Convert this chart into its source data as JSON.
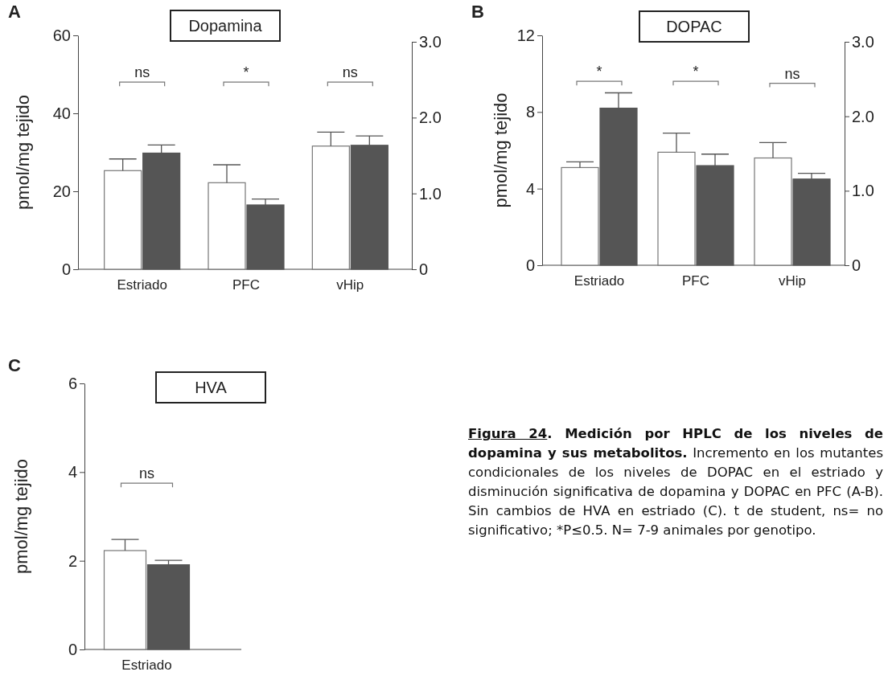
{
  "chart_data": [
    {
      "type": "bar",
      "title": "Dopamina",
      "ylabel": "pmol/mg tejido",
      "categories": [
        "Estriado",
        "PFC",
        "vHip"
      ],
      "ylim": [
        0,
        60
      ],
      "yticks": [
        0,
        20,
        40,
        60
      ],
      "y2lim": [
        0,
        3
      ],
      "y2ticks": [
        {
          "value": 0,
          "label": "0"
        },
        {
          "value": 1,
          "label": "1.0"
        },
        {
          "value": 2,
          "label": "2.0"
        },
        {
          "value": 3,
          "label": "3.0"
        }
      ],
      "grid": false,
      "series": [
        {
          "color": "#ffffff",
          "values": [
            25.3,
            22.2,
            31.6
          ],
          "errors": [
            [
              25.3,
              28.3
            ],
            [
              22.2,
              26.8
            ],
            [
              31.6,
              35.2
            ]
          ]
        },
        {
          "color": "#555555",
          "values": [
            29.8,
            16.5,
            31.8
          ],
          "errors": [
            [
              29.8,
              31.9
            ],
            [
              16.5,
              18.0
            ],
            [
              31.8,
              34.2
            ]
          ]
        }
      ],
      "annotations": [
        "A",
        "ns",
        "*",
        "ns"
      ]
    },
    {
      "type": "bar",
      "title": "DOPAC",
      "ylabel": "pmol/mg tejido",
      "categories": [
        "Estriado",
        "PFC",
        "vHip"
      ],
      "ylim": [
        0,
        12
      ],
      "yticks": [
        0,
        4,
        8,
        12
      ],
      "y2lim": [
        0,
        3
      ],
      "y2ticks": [
        {
          "value": 0,
          "label": "0"
        },
        {
          "value": 1,
          "label": "1.0"
        },
        {
          "value": 2,
          "label": "2.0"
        },
        {
          "value": 3,
          "label": "3.0"
        }
      ],
      "grid": false,
      "series": [
        {
          "color": "#ffffff",
          "values": [
            5.1,
            5.9,
            5.6
          ],
          "errors": [
            [
              5.1,
              5.4
            ],
            [
              5.9,
              6.9
            ],
            [
              5.6,
              6.4
            ]
          ]
        },
        {
          "color": "#555555",
          "values": [
            8.2,
            5.2,
            4.5
          ],
          "errors": [
            [
              8.2,
              9.0
            ],
            [
              5.2,
              5.8
            ],
            [
              4.5,
              4.8
            ]
          ]
        }
      ],
      "annotations": [
        "B",
        "*",
        "*",
        "ns"
      ]
    },
    {
      "type": "bar",
      "title": "HVA",
      "ylabel": "pmol/mg tejido",
      "categories": [
        "Estriado"
      ],
      "ylim": [
        0,
        6
      ],
      "yticks": [
        0,
        2,
        4,
        6
      ],
      "grid": false,
      "series": [
        {
          "color": "#ffffff",
          "values": [
            2.23
          ],
          "errors": [
            [
              2.23,
              2.48
            ]
          ]
        },
        {
          "color": "#555555",
          "values": [
            1.91
          ],
          "errors": [
            [
              1.91,
              2.01
            ]
          ]
        }
      ],
      "annotations": [
        "C",
        "ns"
      ]
    },
    {
      "type": "other",
      "annotations": [
        "Figura 24",
        ". Medición por HPLC de los niveles de dopamina y sus metabolitos.",
        "Incremento en los mutantes condicionales de los niveles de DOPAC en el estriado y disminución significativa de dopamina y DOPAC en PFC (A-B). Sin cambios de HVA en estriado (C). t de student, ns= no significativo; *P≤0.5. N= 7-9 animales por genotipo."
      ]
    }
  ]
}
